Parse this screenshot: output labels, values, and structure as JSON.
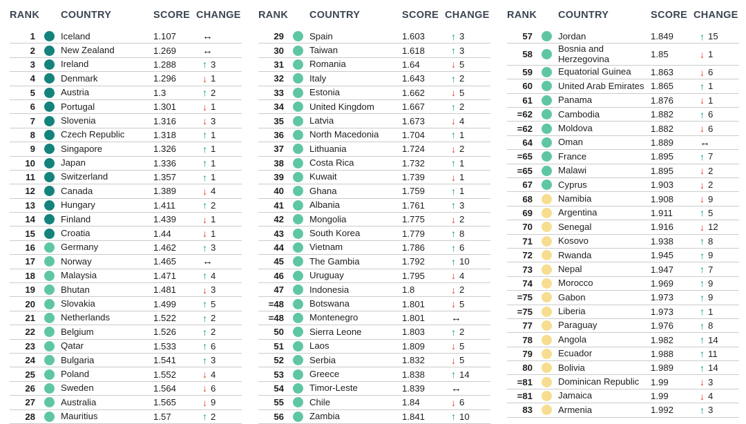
{
  "chart_data": {
    "type": "table",
    "headers": {
      "rank": "RANK",
      "country": "COUNTRY",
      "score": "SCORE",
      "change": "CHANGE"
    },
    "columns": [
      {
        "rows": [
          {
            "rank": "1",
            "country": "Iceland",
            "score": "1.107",
            "tier": "dark_teal",
            "change": "same",
            "by": ""
          },
          {
            "rank": "2",
            "country": "New Zealand",
            "score": "1.269",
            "tier": "dark_teal",
            "change": "same",
            "by": ""
          },
          {
            "rank": "3",
            "country": "Ireland",
            "score": "1.288",
            "tier": "dark_teal",
            "change": "up",
            "by": "3"
          },
          {
            "rank": "4",
            "country": "Denmark",
            "score": "1.296",
            "tier": "dark_teal",
            "change": "down",
            "by": "1"
          },
          {
            "rank": "5",
            "country": "Austria",
            "score": "1.3",
            "tier": "dark_teal",
            "change": "up",
            "by": "2"
          },
          {
            "rank": "6",
            "country": "Portugal",
            "score": "1.301",
            "tier": "dark_teal",
            "change": "down",
            "by": "1"
          },
          {
            "rank": "7",
            "country": "Slovenia",
            "score": "1.316",
            "tier": "dark_teal",
            "change": "down",
            "by": "3"
          },
          {
            "rank": "8",
            "country": "Czech Republic",
            "score": "1.318",
            "tier": "dark_teal",
            "change": "up",
            "by": "1"
          },
          {
            "rank": "9",
            "country": "Singapore",
            "score": "1.326",
            "tier": "dark_teal",
            "change": "up",
            "by": "1"
          },
          {
            "rank": "10",
            "country": "Japan",
            "score": "1.336",
            "tier": "dark_teal",
            "change": "up",
            "by": "1"
          },
          {
            "rank": "11",
            "country": "Switzerland",
            "score": "1.357",
            "tier": "dark_teal",
            "change": "up",
            "by": "1"
          },
          {
            "rank": "12",
            "country": "Canada",
            "score": "1.389",
            "tier": "dark_teal",
            "change": "down",
            "by": "4"
          },
          {
            "rank": "13",
            "country": "Hungary",
            "score": "1.411",
            "tier": "dark_teal",
            "change": "up",
            "by": "2"
          },
          {
            "rank": "14",
            "country": "Finland",
            "score": "1.439",
            "tier": "dark_teal",
            "change": "down",
            "by": "1"
          },
          {
            "rank": "15",
            "country": "Croatia",
            "score": "1.44",
            "tier": "dark_teal",
            "change": "down",
            "by": "1"
          },
          {
            "rank": "16",
            "country": "Germany",
            "score": "1.462",
            "tier": "teal",
            "change": "up",
            "by": "3"
          },
          {
            "rank": "17",
            "country": "Norway",
            "score": "1.465",
            "tier": "teal",
            "change": "same",
            "by": ""
          },
          {
            "rank": "18",
            "country": "Malaysia",
            "score": "1.471",
            "tier": "teal",
            "change": "up",
            "by": "4"
          },
          {
            "rank": "19",
            "country": "Bhutan",
            "score": "1.481",
            "tier": "teal",
            "change": "down",
            "by": "3"
          },
          {
            "rank": "20",
            "country": "Slovakia",
            "score": "1.499",
            "tier": "teal",
            "change": "up",
            "by": "5"
          },
          {
            "rank": "21",
            "country": "Netherlands",
            "score": "1.522",
            "tier": "teal",
            "change": "up",
            "by": "2"
          },
          {
            "rank": "22",
            "country": "Belgium",
            "score": "1.526",
            "tier": "teal",
            "change": "up",
            "by": "2"
          },
          {
            "rank": "23",
            "country": "Qatar",
            "score": "1.533",
            "tier": "teal",
            "change": "up",
            "by": "6"
          },
          {
            "rank": "24",
            "country": "Bulgaria",
            "score": "1.541",
            "tier": "teal",
            "change": "up",
            "by": "3"
          },
          {
            "rank": "25",
            "country": "Poland",
            "score": "1.552",
            "tier": "teal",
            "change": "down",
            "by": "4"
          },
          {
            "rank": "26",
            "country": "Sweden",
            "score": "1.564",
            "tier": "teal",
            "change": "down",
            "by": "6"
          },
          {
            "rank": "27",
            "country": "Australia",
            "score": "1.565",
            "tier": "teal",
            "change": "down",
            "by": "9"
          },
          {
            "rank": "28",
            "country": "Mauritius",
            "score": "1.57",
            "tier": "teal",
            "change": "up",
            "by": "2"
          }
        ]
      },
      {
        "rows": [
          {
            "rank": "29",
            "country": "Spain",
            "score": "1.603",
            "tier": "teal",
            "change": "up",
            "by": "3"
          },
          {
            "rank": "30",
            "country": "Taiwan",
            "score": "1.618",
            "tier": "teal",
            "change": "up",
            "by": "3"
          },
          {
            "rank": "31",
            "country": "Romania",
            "score": "1.64",
            "tier": "teal",
            "change": "down",
            "by": "5"
          },
          {
            "rank": "32",
            "country": "Italy",
            "score": "1.643",
            "tier": "teal",
            "change": "up",
            "by": "2"
          },
          {
            "rank": "33",
            "country": "Estonia",
            "score": "1.662",
            "tier": "teal",
            "change": "down",
            "by": "5"
          },
          {
            "rank": "34",
            "country": "United Kingdom",
            "score": "1.667",
            "tier": "teal",
            "change": "up",
            "by": "2"
          },
          {
            "rank": "35",
            "country": "Latvia",
            "score": "1.673",
            "tier": "teal",
            "change": "down",
            "by": "4"
          },
          {
            "rank": "36",
            "country": "North Macedonia",
            "score": "1.704",
            "tier": "teal",
            "change": "up",
            "by": "1"
          },
          {
            "rank": "37",
            "country": "Lithuania",
            "score": "1.724",
            "tier": "teal",
            "change": "down",
            "by": "2"
          },
          {
            "rank": "38",
            "country": "Costa Rica",
            "score": "1.732",
            "tier": "teal",
            "change": "up",
            "by": "1"
          },
          {
            "rank": "39",
            "country": "Kuwait",
            "score": "1.739",
            "tier": "teal",
            "change": "down",
            "by": "1"
          },
          {
            "rank": "40",
            "country": "Ghana",
            "score": "1.759",
            "tier": "teal",
            "change": "up",
            "by": "1"
          },
          {
            "rank": "41",
            "country": "Albania",
            "score": "1.761",
            "tier": "teal",
            "change": "up",
            "by": "3"
          },
          {
            "rank": "42",
            "country": "Mongolia",
            "score": "1.775",
            "tier": "teal",
            "change": "down",
            "by": "2"
          },
          {
            "rank": "43",
            "country": "South Korea",
            "score": "1.779",
            "tier": "teal",
            "change": "up",
            "by": "8"
          },
          {
            "rank": "44",
            "country": "Vietnam",
            "score": "1.786",
            "tier": "teal",
            "change": "up",
            "by": "6"
          },
          {
            "rank": "45",
            "country": "The Gambia",
            "score": "1.792",
            "tier": "teal",
            "change": "up",
            "by": "10"
          },
          {
            "rank": "46",
            "country": "Uruguay",
            "score": "1.795",
            "tier": "teal",
            "change": "down",
            "by": "4"
          },
          {
            "rank": "47",
            "country": "Indonesia",
            "score": "1.8",
            "tier": "teal",
            "change": "down",
            "by": "2"
          },
          {
            "rank": "=48",
            "country": "Botswana",
            "score": "1.801",
            "tier": "teal",
            "change": "down",
            "by": "5"
          },
          {
            "rank": "=48",
            "country": "Montenegro",
            "score": "1.801",
            "tier": "teal",
            "change": "same",
            "by": ""
          },
          {
            "rank": "50",
            "country": "Sierra Leone",
            "score": "1.803",
            "tier": "teal",
            "change": "up",
            "by": "2"
          },
          {
            "rank": "51",
            "country": "Laos",
            "score": "1.809",
            "tier": "teal",
            "change": "down",
            "by": "5"
          },
          {
            "rank": "52",
            "country": "Serbia",
            "score": "1.832",
            "tier": "teal",
            "change": "down",
            "by": "5"
          },
          {
            "rank": "53",
            "country": "Greece",
            "score": "1.838",
            "tier": "teal",
            "change": "up",
            "by": "14"
          },
          {
            "rank": "54",
            "country": "Timor-Leste",
            "score": "1.839",
            "tier": "teal",
            "change": "same",
            "by": ""
          },
          {
            "rank": "55",
            "country": "Chile",
            "score": "1.84",
            "tier": "teal",
            "change": "down",
            "by": "6"
          },
          {
            "rank": "56",
            "country": "Zambia",
            "score": "1.841",
            "tier": "teal",
            "change": "up",
            "by": "10"
          }
        ]
      },
      {
        "rows": [
          {
            "rank": "57",
            "country": "Jordan",
            "score": "1.849",
            "tier": "teal",
            "change": "up",
            "by": "15"
          },
          {
            "rank": "58",
            "country": "Bosnia and Herzegovina",
            "score": "1.85",
            "tier": "teal",
            "change": "down",
            "by": "1"
          },
          {
            "rank": "59",
            "country": "Equatorial Guinea",
            "score": "1.863",
            "tier": "teal",
            "change": "down",
            "by": "6"
          },
          {
            "rank": "60",
            "country": "United Arab Emirates",
            "score": "1.865",
            "tier": "teal",
            "change": "up",
            "by": "1"
          },
          {
            "rank": "61",
            "country": "Panama",
            "score": "1.876",
            "tier": "teal",
            "change": "down",
            "by": "1"
          },
          {
            "rank": "=62",
            "country": "Cambodia",
            "score": "1.882",
            "tier": "teal",
            "change": "up",
            "by": "6"
          },
          {
            "rank": "=62",
            "country": "Moldova",
            "score": "1.882",
            "tier": "teal",
            "change": "down",
            "by": "6"
          },
          {
            "rank": "64",
            "country": "Oman",
            "score": "1.889",
            "tier": "teal",
            "change": "same",
            "by": ""
          },
          {
            "rank": "=65",
            "country": "France",
            "score": "1.895",
            "tier": "teal",
            "change": "up",
            "by": "7"
          },
          {
            "rank": "=65",
            "country": "Malawi",
            "score": "1.895",
            "tier": "teal",
            "change": "down",
            "by": "2"
          },
          {
            "rank": "67",
            "country": "Cyprus",
            "score": "1.903",
            "tier": "teal",
            "change": "down",
            "by": "2"
          },
          {
            "rank": "68",
            "country": "Namibia",
            "score": "1.908",
            "tier": "yellow",
            "change": "down",
            "by": "9"
          },
          {
            "rank": "69",
            "country": "Argentina",
            "score": "1.911",
            "tier": "yellow",
            "change": "up",
            "by": "5"
          },
          {
            "rank": "70",
            "country": "Senegal",
            "score": "1.916",
            "tier": "yellow",
            "change": "down",
            "by": "12"
          },
          {
            "rank": "71",
            "country": "Kosovo",
            "score": "1.938",
            "tier": "yellow",
            "change": "up",
            "by": "8"
          },
          {
            "rank": "72",
            "country": "Rwanda",
            "score": "1.945",
            "tier": "yellow",
            "change": "up",
            "by": "9"
          },
          {
            "rank": "73",
            "country": "Nepal",
            "score": "1.947",
            "tier": "yellow",
            "change": "up",
            "by": "7"
          },
          {
            "rank": "74",
            "country": "Morocco",
            "score": "1.969",
            "tier": "yellow",
            "change": "up",
            "by": "9"
          },
          {
            "rank": "=75",
            "country": "Gabon",
            "score": "1.973",
            "tier": "yellow",
            "change": "up",
            "by": "9"
          },
          {
            "rank": "=75",
            "country": "Liberia",
            "score": "1.973",
            "tier": "yellow",
            "change": "up",
            "by": "1"
          },
          {
            "rank": "77",
            "country": "Paraguay",
            "score": "1.976",
            "tier": "yellow",
            "change": "up",
            "by": "8"
          },
          {
            "rank": "78",
            "country": "Angola",
            "score": "1.982",
            "tier": "yellow",
            "change": "up",
            "by": "14"
          },
          {
            "rank": "79",
            "country": "Ecuador",
            "score": "1.988",
            "tier": "yellow",
            "change": "up",
            "by": "11"
          },
          {
            "rank": "80",
            "country": "Bolivia",
            "score": "1.989",
            "tier": "yellow",
            "change": "up",
            "by": "14"
          },
          {
            "rank": "=81",
            "country": "Dominican Republic",
            "score": "1.99",
            "tier": "yellow",
            "change": "down",
            "by": "3"
          },
          {
            "rank": "=81",
            "country": "Jamaica",
            "score": "1.99",
            "tier": "yellow",
            "change": "down",
            "by": "4"
          },
          {
            "rank": "83",
            "country": "Armenia",
            "score": "1.992",
            "tier": "yellow",
            "change": "up",
            "by": "3"
          }
        ]
      }
    ]
  },
  "colors": {
    "dots": {
      "dark_teal": "#14837b",
      "teal": "#5fc6a3",
      "yellow": "#f6dd90"
    },
    "change": {
      "up": "#0a9289",
      "down": "#e73128",
      "same": "#1a1a1a"
    },
    "header_text": "#3b4551",
    "body_text": "#1e1e1e",
    "divider": "#cbcbcb"
  },
  "icons": {
    "up": "↑",
    "down": "↓",
    "same": "↔"
  }
}
